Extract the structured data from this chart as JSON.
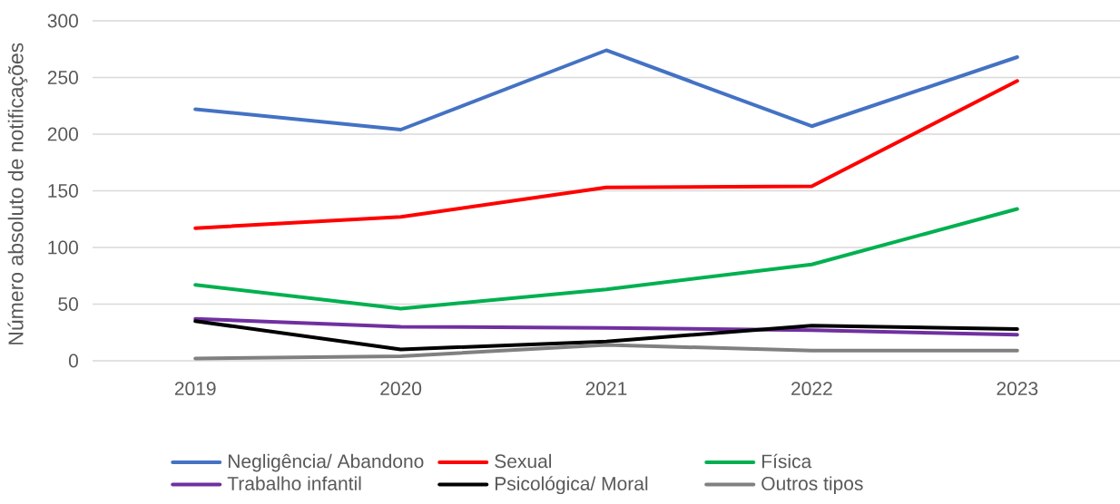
{
  "chart_data": {
    "type": "line",
    "ylabel": "Número absoluto de notificações",
    "categories": [
      "2019",
      "2020",
      "2021",
      "2022",
      "2023"
    ],
    "series": [
      {
        "name": "Negligência/ Abandono",
        "color": "#4472c4",
        "values": [
          222,
          204,
          274,
          207,
          268
        ]
      },
      {
        "name": "Sexual",
        "color": "#ff0000",
        "values": [
          117,
          127,
          153,
          154,
          247
        ]
      },
      {
        "name": "Física",
        "color": "#00b050",
        "values": [
          67,
          46,
          63,
          85,
          134
        ]
      },
      {
        "name": "Trabalho infantil",
        "color": "#7030a0",
        "values": [
          37,
          30,
          29,
          27,
          23
        ]
      },
      {
        "name": "Psicológica/ Moral",
        "color": "#000000",
        "values": [
          35,
          10,
          17,
          31,
          28
        ]
      },
      {
        "name": "Outros tipos",
        "color": "#808080",
        "values": [
          2,
          4,
          14,
          9,
          9
        ]
      }
    ],
    "ylim": [
      0,
      300
    ],
    "yticks": [
      0,
      50,
      100,
      150,
      200,
      250,
      300
    ],
    "grid": "y",
    "legend": "bottom",
    "marker": "none",
    "line_style": "solid"
  }
}
